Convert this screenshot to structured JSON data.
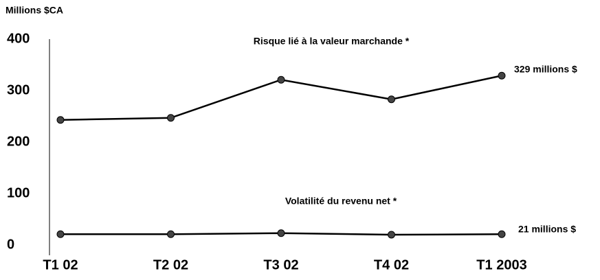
{
  "chart_data": {
    "type": "line",
    "y_label": "Millions $CA",
    "categories": [
      "T1 02",
      "T2 02",
      "T3 02",
      "T4 02",
      "T1 2003"
    ],
    "series": [
      {
        "name": "Risque lié à la valeur marchande *",
        "color": "#000000",
        "values": [
          243,
          247,
          321,
          283,
          329
        ]
      },
      {
        "name": "Volatilité du revenu net *",
        "color": "#000000",
        "values": [
          21,
          21,
          23,
          20,
          21
        ]
      }
    ],
    "annotations": [
      "329 millions $",
      "21 millions $"
    ],
    "ylim": [
      0,
      400
    ],
    "yticks": [
      0,
      100,
      200,
      300,
      400
    ],
    "grid": false
  }
}
